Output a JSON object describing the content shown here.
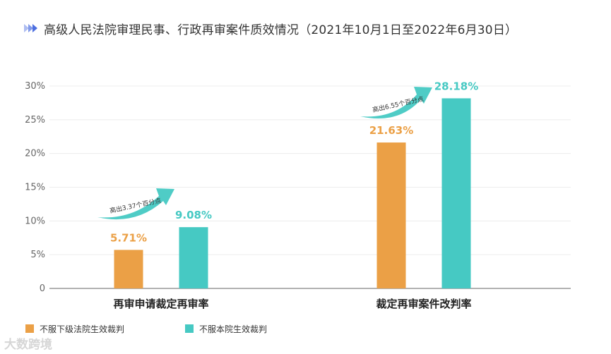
{
  "title": "高级人民法院审理民事、行政再审案件质效情况（2021年10月1日至2022年6月30日）",
  "colors": {
    "series_orange": "#eba046",
    "series_teal": "#46c9c3",
    "title_icon": "#4d6fe0",
    "grid": "#ececec",
    "axis": "#999999"
  },
  "chart_data": {
    "type": "bar",
    "categories": [
      "再审申请裁定再审率",
      "裁定再审案件改判率"
    ],
    "series": [
      {
        "name": "不服下级法院生效裁判",
        "values": [
          5.71,
          21.63
        ],
        "labels": [
          "5.71%",
          "21.63%"
        ]
      },
      {
        "name": "不服本院生效裁判",
        "values": [
          9.08,
          28.18
        ],
        "labels": [
          "9.08%",
          "28.18%"
        ]
      }
    ],
    "y_ticks": [
      "0",
      "5%",
      "10%",
      "15%",
      "20%",
      "25%",
      "30%"
    ],
    "ylim": [
      0,
      30
    ],
    "grid": true,
    "legend_position": "bottom-left",
    "annotations": [
      "高出3.37个百分点",
      "高出6.55个百分点"
    ]
  },
  "watermark": "大数跨境"
}
